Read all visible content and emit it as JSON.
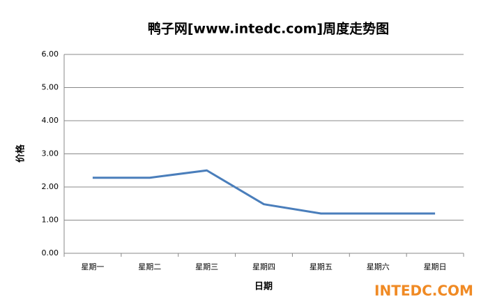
{
  "chart_data": {
    "type": "line",
    "title": "鸭子网[www.intedc.com]周度走势图",
    "y_label": "价格",
    "x_label": "日期",
    "categories": [
      "星期一",
      "星期二",
      "星期三",
      "星期四",
      "星期五",
      "星期六",
      "星期日"
    ],
    "series": [
      {
        "name": "价格",
        "color": "#4a7ebb",
        "values": [
          2.28,
          2.28,
          2.5,
          1.48,
          1.2,
          1.2,
          1.2
        ]
      }
    ],
    "ylim": [
      0,
      6
    ],
    "yticks": [
      {
        "value": 0,
        "label": "0.00"
      },
      {
        "value": 1,
        "label": "1.00"
      },
      {
        "value": 2,
        "label": "2.00"
      },
      {
        "value": 3,
        "label": "3.00"
      },
      {
        "value": 4,
        "label": "4.00"
      },
      {
        "value": 5,
        "label": "5.00"
      },
      {
        "value": 6,
        "label": "6.00"
      }
    ],
    "grid": true,
    "legend": false,
    "logo": "INTEDC.COM"
  }
}
